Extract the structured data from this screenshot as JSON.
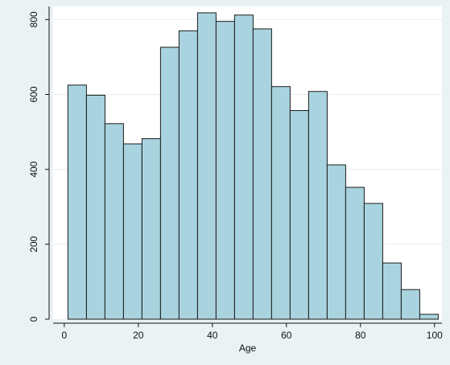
{
  "chart_data": {
    "type": "bar",
    "subtype": "histogram",
    "xlabel": "Age",
    "ylabel": "",
    "xlim": [
      -3,
      102
    ],
    "ylim": [
      0,
      835
    ],
    "x_ticks": [
      0,
      20,
      40,
      60,
      80,
      100
    ],
    "y_ticks": [
      0,
      200,
      400,
      600,
      800
    ],
    "bin_width": 5,
    "bins": [
      {
        "start": 1,
        "end": 6,
        "count": 625
      },
      {
        "start": 6,
        "end": 11,
        "count": 598
      },
      {
        "start": 11,
        "end": 16,
        "count": 522
      },
      {
        "start": 16,
        "end": 21,
        "count": 468
      },
      {
        "start": 21,
        "end": 26,
        "count": 482
      },
      {
        "start": 26,
        "end": 31,
        "count": 726
      },
      {
        "start": 31,
        "end": 36,
        "count": 770
      },
      {
        "start": 36,
        "end": 41,
        "count": 818
      },
      {
        "start": 41,
        "end": 46,
        "count": 795
      },
      {
        "start": 46,
        "end": 51,
        "count": 812
      },
      {
        "start": 51,
        "end": 56,
        "count": 775
      },
      {
        "start": 56,
        "end": 61,
        "count": 621
      },
      {
        "start": 61,
        "end": 66,
        "count": 557
      },
      {
        "start": 66,
        "end": 71,
        "count": 608
      },
      {
        "start": 71,
        "end": 76,
        "count": 412
      },
      {
        "start": 76,
        "end": 81,
        "count": 352
      },
      {
        "start": 81,
        "end": 86,
        "count": 309
      },
      {
        "start": 86,
        "end": 91,
        "count": 150
      },
      {
        "start": 91,
        "end": 96,
        "count": 79
      },
      {
        "start": 96,
        "end": 101,
        "count": 13
      }
    ],
    "grid": "horizontal",
    "legend": "none",
    "colors": {
      "bar_fill": "#a9d4df",
      "bar_stroke": "#1a1a1a",
      "plot_background": "#ffffff",
      "outer_background": "#eaf2f3",
      "grid": "#e6eef0",
      "axis": "#111111"
    }
  }
}
